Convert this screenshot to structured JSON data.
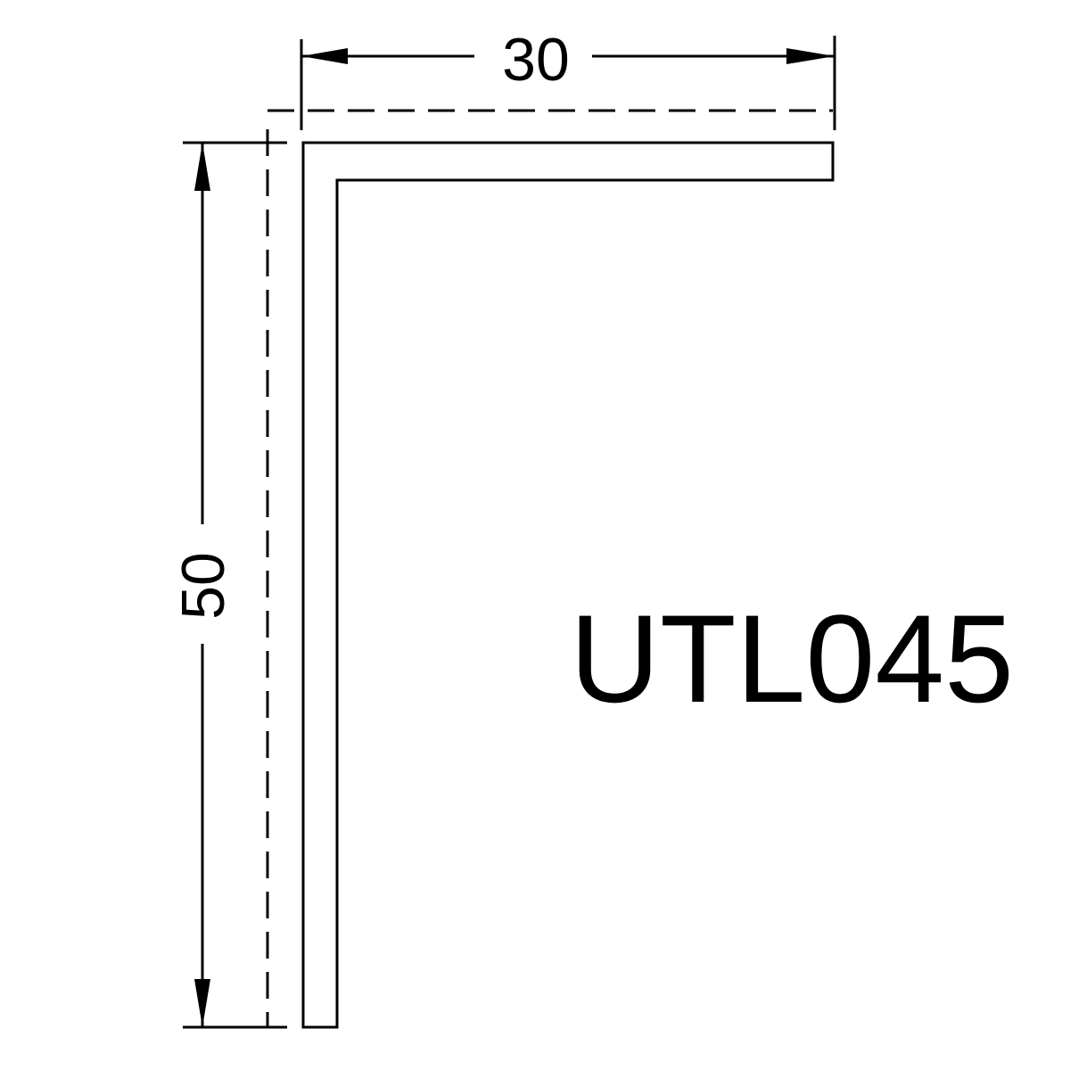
{
  "dimensions": {
    "width_label": "30",
    "height_label": "50"
  },
  "part_code": "UTL045",
  "colors": {
    "line": "#000000",
    "background": "#ffffff"
  }
}
